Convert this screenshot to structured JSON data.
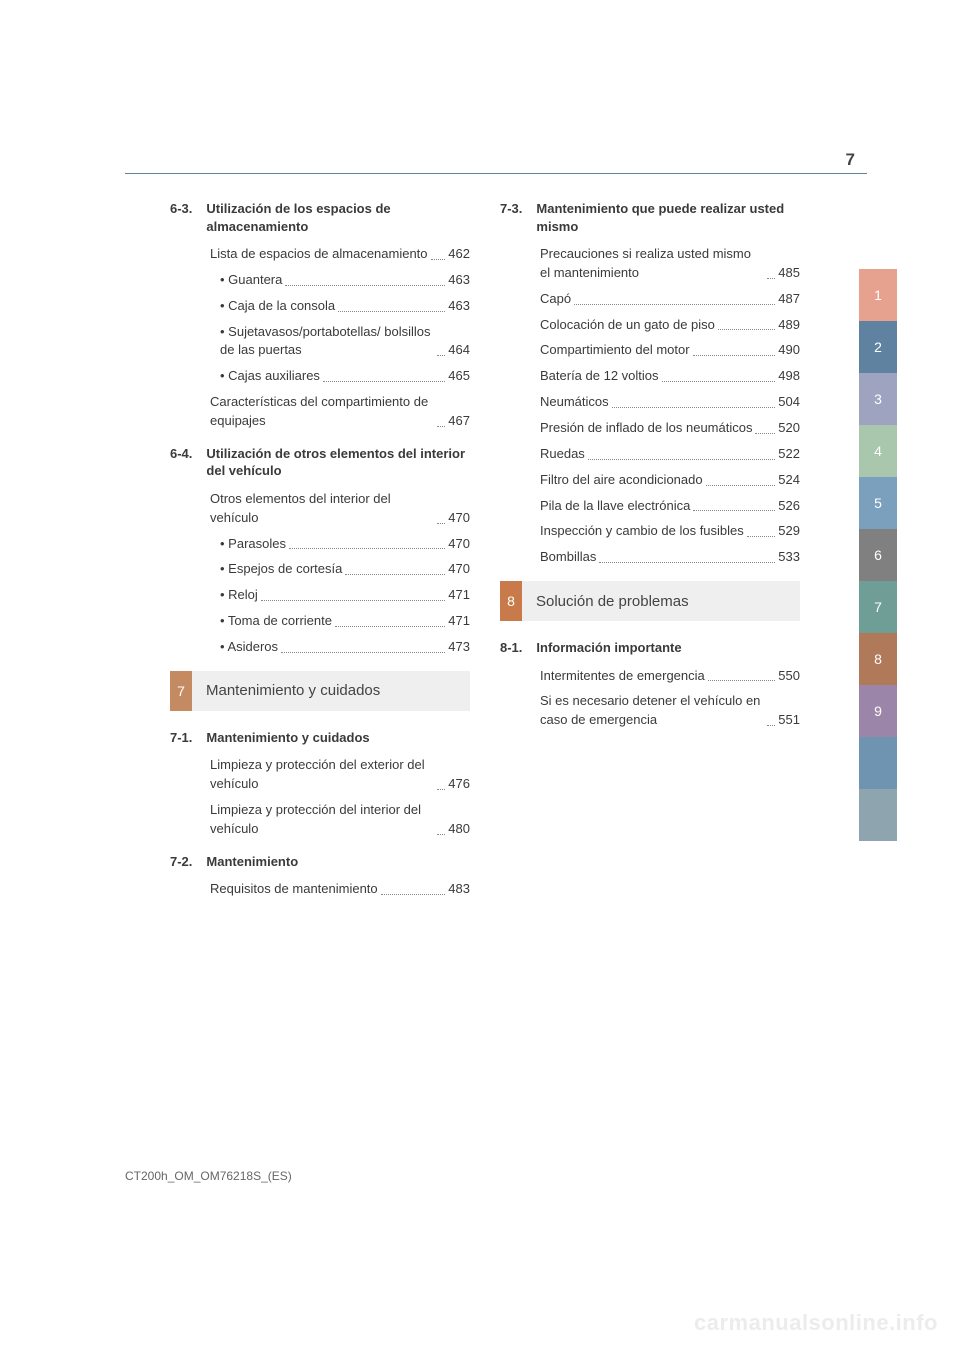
{
  "page_number": "7",
  "footer": "CT200h_OM_OM76218S_(ES)",
  "watermark": "carmanualsonline.info",
  "colors": {
    "hr": "#5e82a0",
    "band7_num_bg": "#c48a62",
    "band7_title_bg": "#efefef",
    "band8_num_bg": "#c87a4a",
    "band8_title_bg": "#efefef"
  },
  "side_tabs": [
    {
      "label": "1",
      "color": "#e7a28f"
    },
    {
      "label": "2",
      "color": "#5e82a0"
    },
    {
      "label": "3",
      "color": "#9ea4c0"
    },
    {
      "label": "4",
      "color": "#a9c7ac"
    },
    {
      "label": "5",
      "color": "#7aa0be"
    },
    {
      "label": "6",
      "color": "#808080"
    },
    {
      "label": "7",
      "color": "#6f9e97"
    },
    {
      "label": "8",
      "color": "#b07a5a"
    },
    {
      "label": "9",
      "color": "#9b86aa"
    },
    {
      "label": "",
      "color": "#6f94b1"
    },
    {
      "label": "",
      "color": "#8ea4ae"
    }
  ],
  "left_col": {
    "sec63": {
      "num": "6-3.",
      "title": "Utilización de los espacios de almacenamiento",
      "items": [
        {
          "label": "Lista de espacios de almacenamiento",
          "page": "462"
        },
        {
          "label": "Guantera",
          "page": "463",
          "sub": true
        },
        {
          "label": "Caja de la consola",
          "page": "463",
          "sub": true
        },
        {
          "label": "Sujetavasos/portabotellas/ bolsillos de las puertas",
          "page": "464",
          "sub": true
        },
        {
          "label": "Cajas auxiliares",
          "page": "465",
          "sub": true
        },
        {
          "label": "Características del compartimiento de equipajes",
          "page": "467"
        }
      ]
    },
    "sec64": {
      "num": "6-4.",
      "title": "Utilización de otros elementos del interior del vehículo",
      "items": [
        {
          "label": "Otros elementos del interior del vehículo",
          "page": "470"
        },
        {
          "label": "Parasoles",
          "page": "470",
          "sub": true
        },
        {
          "label": "Espejos de cortesía",
          "page": "470",
          "sub": true
        },
        {
          "label": "Reloj",
          "page": "471",
          "sub": true
        },
        {
          "label": "Toma de corriente",
          "page": "471",
          "sub": true
        },
        {
          "label": "Asideros",
          "page": "473",
          "sub": true
        }
      ]
    },
    "chapter7": {
      "num": "7",
      "title": "Mantenimiento y cuidados"
    },
    "sec71": {
      "num": "7-1.",
      "title": "Mantenimiento y cuidados",
      "items": [
        {
          "label": "Limpieza y protección del exterior del vehículo",
          "page": "476"
        },
        {
          "label": "Limpieza y protección del interior del vehículo",
          "page": "480"
        }
      ]
    },
    "sec72": {
      "num": "7-2.",
      "title": "Mantenimiento",
      "items": [
        {
          "label": "Requisitos de mantenimiento",
          "page": "483"
        }
      ]
    }
  },
  "right_col": {
    "sec73": {
      "num": "7-3.",
      "title": "Mantenimiento que puede realizar usted mismo",
      "items": [
        {
          "label": "Precauciones si realiza usted mismo el mantenimiento",
          "page": "485"
        },
        {
          "label": "Capó",
          "page": "487"
        },
        {
          "label": "Colocación de un gato de piso",
          "page": "489"
        },
        {
          "label": "Compartimiento del motor",
          "page": "490"
        },
        {
          "label": "Batería de 12 voltios",
          "page": "498"
        },
        {
          "label": "Neumáticos",
          "page": "504"
        },
        {
          "label": "Presión de inflado de los neumáticos",
          "page": "520"
        },
        {
          "label": "Ruedas",
          "page": "522"
        },
        {
          "label": "Filtro del aire acondicionado",
          "page": "524"
        },
        {
          "label": "Pila de la llave electrónica",
          "page": "526"
        },
        {
          "label": "Inspección y cambio de los fusibles",
          "page": "529"
        },
        {
          "label": "Bombillas",
          "page": "533"
        }
      ]
    },
    "chapter8": {
      "num": "8",
      "title": "Solución de problemas"
    },
    "sec81": {
      "num": "8-1.",
      "title": "Información importante",
      "items": [
        {
          "label": "Intermitentes de emergencia",
          "page": "550"
        },
        {
          "label": "Si es necesario detener el vehículo en caso de emergencia",
          "page": "551"
        }
      ]
    }
  }
}
